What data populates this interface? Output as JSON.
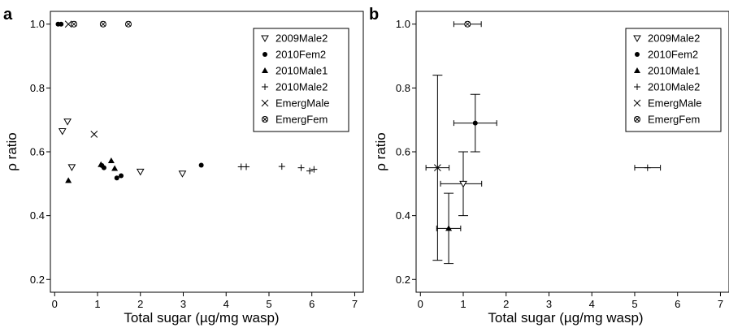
{
  "chart_data": [
    {
      "panel_label": "a",
      "type": "scatter",
      "xlabel": "Total sugar (µg/mg wasp)",
      "ylabel": "ρ ratio",
      "xlim": [
        -0.1,
        7.2
      ],
      "ylim": [
        0.16,
        1.04
      ],
      "x_ticks": [
        "0",
        "1",
        "2",
        "3",
        "4",
        "5",
        "6",
        "7"
      ],
      "y_ticks": [
        "0.2",
        "0.4",
        "0.6",
        "0.8",
        "1.0"
      ],
      "legend": {
        "position": "top-right",
        "entries": [
          "2009Male2",
          "2010Fem2",
          "2010Male1",
          "2010Male2",
          "EmergMale",
          "EmergFem"
        ]
      },
      "series": [
        {
          "name": "2009Male2",
          "marker": "triangle-down-open",
          "points": [
            [
              0.18,
              0.665
            ],
            [
              0.3,
              0.695
            ],
            [
              0.4,
              0.552
            ],
            [
              2.0,
              0.538
            ],
            [
              2.98,
              0.532
            ]
          ]
        },
        {
          "name": "2010Fem2",
          "marker": "circle-filled",
          "points": [
            [
              0.08,
              1.0
            ],
            [
              0.15,
              1.0
            ],
            [
              1.1,
              0.557
            ],
            [
              1.15,
              0.55
            ],
            [
              1.45,
              0.518
            ],
            [
              1.55,
              0.525
            ],
            [
              3.42,
              0.558
            ]
          ]
        },
        {
          "name": "2010Male1",
          "marker": "triangle-up-filled",
          "points": [
            [
              0.32,
              0.51
            ],
            [
              1.08,
              0.56
            ],
            [
              1.32,
              0.572
            ],
            [
              1.4,
              0.548
            ]
          ]
        },
        {
          "name": "2010Male2",
          "marker": "plus",
          "points": [
            [
              4.35,
              0.553
            ],
            [
              4.47,
              0.553
            ],
            [
              5.3,
              0.554
            ],
            [
              5.75,
              0.55
            ],
            [
              5.95,
              0.54
            ],
            [
              6.05,
              0.545
            ]
          ]
        },
        {
          "name": "EmergMale",
          "marker": "cross",
          "points": [
            [
              0.32,
              1.0
            ],
            [
              0.92,
              0.655
            ]
          ]
        },
        {
          "name": "EmergFem",
          "marker": "crossed-circle",
          "points": [
            [
              0.45,
              1.0
            ],
            [
              1.13,
              1.0
            ],
            [
              1.72,
              1.0
            ]
          ]
        }
      ]
    },
    {
      "panel_label": "b",
      "type": "scatter",
      "xlabel": "Total sugar (µg/mg wasp)",
      "ylabel": "ρ ratio",
      "xlim": [
        -0.1,
        7.2
      ],
      "ylim": [
        0.16,
        1.04
      ],
      "x_ticks": [
        "0",
        "1",
        "2",
        "3",
        "4",
        "5",
        "6",
        "7"
      ],
      "y_ticks": [
        "0.2",
        "0.4",
        "0.6",
        "0.8",
        "1.0"
      ],
      "legend": {
        "position": "top-right",
        "entries": [
          "2009Male2",
          "2010Fem2",
          "2010Male1",
          "2010Male2",
          "EmergMale",
          "EmergFem"
        ]
      },
      "series": [
        {
          "name": "2009Male2",
          "marker": "triangle-down-open",
          "points": [
            {
              "x": 1.0,
              "y": 0.5,
              "xerr": [
                0.47,
                1.43
              ],
              "yerr": [
                0.4,
                0.6
              ]
            }
          ]
        },
        {
          "name": "2010Fem2",
          "marker": "circle-filled",
          "points": [
            {
              "x": 1.28,
              "y": 0.69,
              "xerr": [
                0.78,
                1.78
              ],
              "yerr": [
                0.6,
                0.78
              ]
            }
          ]
        },
        {
          "name": "2010Male1",
          "marker": "triangle-up-filled",
          "points": [
            {
              "x": 0.66,
              "y": 0.36,
              "xerr": [
                0.38,
                0.94
              ],
              "yerr": [
                0.25,
                0.47
              ]
            }
          ]
        },
        {
          "name": "2010Male2",
          "marker": "plus",
          "points": [
            {
              "x": 5.3,
              "y": 0.55,
              "xerr": [
                5.0,
                5.6
              ],
              "yerr": null
            }
          ]
        },
        {
          "name": "EmergMale",
          "marker": "cross",
          "points": [
            {
              "x": 0.4,
              "y": 0.55,
              "xerr": [
                0.13,
                0.67
              ],
              "yerr": [
                0.26,
                0.84
              ]
            }
          ]
        },
        {
          "name": "EmergFem",
          "marker": "crossed-circle",
          "points": [
            {
              "x": 1.1,
              "y": 1.0,
              "xerr": [
                0.78,
                1.42
              ],
              "yerr": null
            }
          ]
        }
      ]
    }
  ]
}
